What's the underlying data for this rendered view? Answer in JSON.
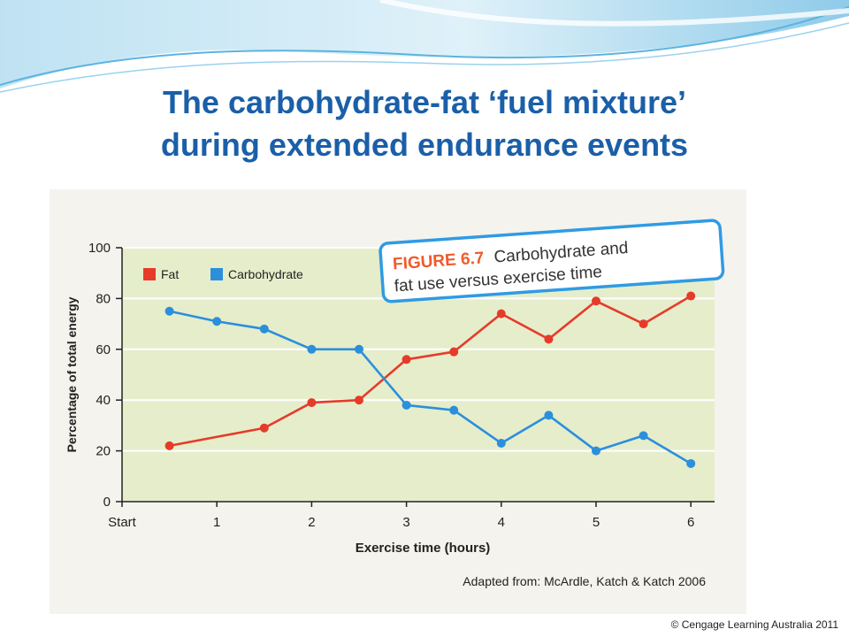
{
  "slide": {
    "title_line1": "The  carbohydrate-fat ‘fuel mixture’",
    "title_line2": "during extended endurance events",
    "copyright": "© Cengage Learning Australia 2011"
  },
  "figure_label": {
    "prefix": "FIGURE 6.7",
    "line1_rest": "Carbohydrate and",
    "line2": "fat use versus exercise time"
  },
  "source_note": "Adapted from: McArdle, Katch & Katch 2006",
  "colors": {
    "fat": "#e63b2a",
    "carbohydrate": "#2b8fdc",
    "plot_background": "#e6edcb",
    "title": "#1a5fa8"
  },
  "chart_data": {
    "type": "line",
    "xlabel": "Exercise time (hours)",
    "ylabel": "Percentage of total energy",
    "xlim": [
      0,
      6.25
    ],
    "ylim": [
      0,
      100
    ],
    "x_ticks": [
      0,
      1,
      2,
      3,
      4,
      5,
      6
    ],
    "x_tick_labels": [
      "Start",
      "1",
      "2",
      "3",
      "4",
      "5",
      "6"
    ],
    "y_ticks": [
      0,
      20,
      40,
      60,
      80,
      100
    ],
    "y_tick_labels": [
      "0",
      "20",
      "40",
      "60",
      "80",
      "100"
    ],
    "grid": true,
    "legend_position": "top-left",
    "x": [
      0.5,
      1.0,
      1.5,
      2.0,
      2.5,
      3.0,
      3.5,
      4.0,
      4.5,
      5.0,
      5.5,
      6.0
    ],
    "series": [
      {
        "name": "Fat",
        "color": "#e63b2a",
        "values": [
          22,
          null,
          29,
          39,
          40,
          56,
          59,
          74,
          64,
          79,
          70,
          81
        ]
      },
      {
        "name": "Carbohydrate",
        "color": "#2b8fdc",
        "values": [
          75,
          71,
          68,
          60,
          60,
          38,
          36,
          23,
          34,
          20,
          26,
          15
        ]
      }
    ]
  }
}
